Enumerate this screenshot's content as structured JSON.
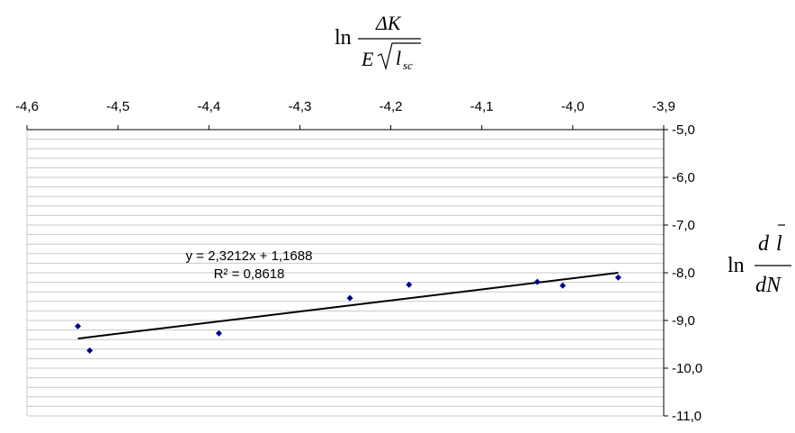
{
  "chart_data": {
    "type": "scatter",
    "title": "",
    "xlabel": {
      "prefix": "ln",
      "numerator": "ΔK",
      "denominator_E": "E",
      "denominator_l": "l",
      "denominator_sub": "sc"
    },
    "ylabel": {
      "prefix": "ln",
      "numerator_d": "d",
      "numerator_l": "l",
      "denominator": "dN"
    },
    "xlim": [
      -4.6,
      -3.9
    ],
    "ylim": [
      -11.0,
      -5.0
    ],
    "x_axis_position": "top",
    "y_axis_position": "right",
    "x_ticks": [
      "-4,6",
      "-4,5",
      "-4,4",
      "-4,3",
      "-4,2",
      "-4,1",
      "-4,0",
      "-3,9"
    ],
    "x_tick_values": [
      -4.6,
      -4.5,
      -4.4,
      -4.3,
      -4.2,
      -4.1,
      -4.0,
      -3.9
    ],
    "y_ticks": [
      "-5,0",
      "-6,0",
      "-7,0",
      "-8,0",
      "-9,0",
      "-10,0",
      "-11,0"
    ],
    "y_tick_values": [
      -5.0,
      -6.0,
      -7.0,
      -8.0,
      -9.0,
      -10.0,
      -11.0
    ],
    "y_minor_step": 0.2,
    "grid": true,
    "points": {
      "x": [
        -4.544,
        -4.531,
        -4.389,
        -4.245,
        -4.18,
        -4.039,
        -4.011,
        -3.95
      ],
      "y": [
        -9.12,
        -9.63,
        -9.27,
        -8.53,
        -8.25,
        -8.19,
        -8.27,
        -8.1
      ]
    },
    "marker_color": "#00008B",
    "trendline": {
      "type": "linear",
      "slope": 2.3212,
      "intercept": 1.1688,
      "x_range": [
        -4.544,
        -3.95
      ],
      "color": "#000000",
      "equation": "y = 2,3212x + 1,1688",
      "r2": "R² = 0,8618"
    }
  }
}
